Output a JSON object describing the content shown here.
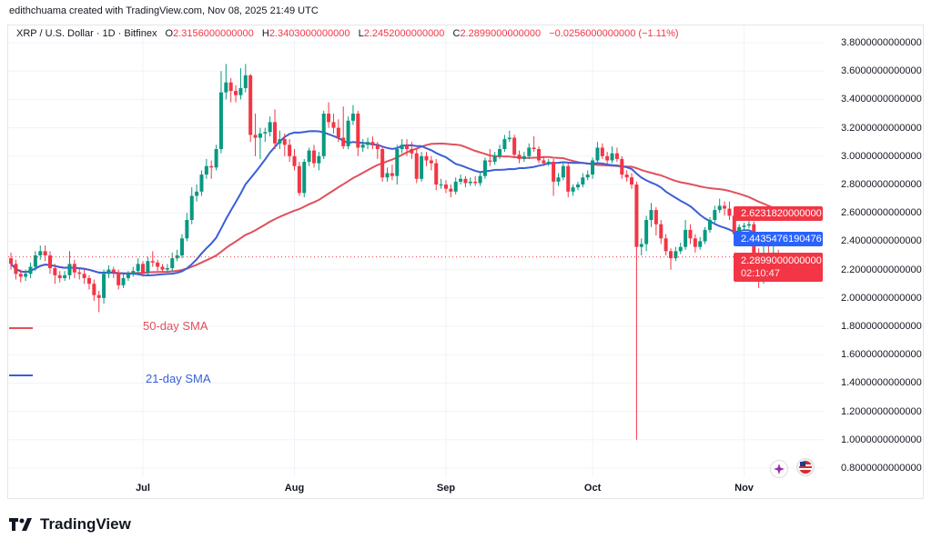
{
  "credit": "edithchuama created with TradingView.com, Nov 08, 2025 21:49 UTC",
  "symbol_line": {
    "symbol": "XRP / U.S. Dollar · 1D · Bitfinex",
    "o_label": "O",
    "o": "2.3156000000000",
    "h_label": "H",
    "h": "2.3403000000000",
    "l_label": "L",
    "l": "2.2452000000000",
    "c_label": "C",
    "c": "2.2899000000000",
    "change": "−0.0256000000000 (−1.11%)"
  },
  "legend": {
    "sma50": "50-day SMA",
    "sma21": "21-day SMA"
  },
  "price_labels": {
    "sma50_value": "2.6231820000000",
    "sma21_value": "2.4435476190476",
    "last_price": "2.2899000000000",
    "countdown": "02:10:47"
  },
  "colors": {
    "up": "#089981",
    "down": "#f23645",
    "sma50": "#e0505c",
    "sma21": "#3a5fd6",
    "blue_label": "#2962ff",
    "red_label": "#f23645"
  },
  "brand": "TradingView",
  "chart_data": {
    "type": "candlestick",
    "title": "XRP / U.S. Dollar · 1D · Bitfinex",
    "ylim": [
      0.7,
      3.9
    ],
    "y_ticks": [
      "3.8000000000000",
      "3.6000000000000",
      "3.4000000000000",
      "3.2000000000000",
      "3.0000000000000",
      "2.8000000000000",
      "2.6000000000000",
      "2.4000000000000",
      "2.2000000000000",
      "2.0000000000000",
      "1.8000000000000",
      "1.6000000000000",
      "1.4000000000000",
      "1.2000000000000",
      "1.0000000000000",
      "0.8000000000000"
    ],
    "x_ticks": [
      {
        "label": "Jul",
        "date": "2025-07-01"
      },
      {
        "label": "Aug",
        "date": "2025-08-01"
      },
      {
        "label": "Sep",
        "date": "2025-09-01"
      },
      {
        "label": "Oct",
        "date": "2025-10-01"
      },
      {
        "label": "Nov",
        "date": "2025-11-01"
      }
    ],
    "grid": true,
    "indicators": [
      {
        "name": "50-day SMA",
        "period": 50
      },
      {
        "name": "21-day SMA",
        "period": 21
      }
    ],
    "candles_fields": [
      "date",
      "open",
      "high",
      "low",
      "close"
    ],
    "candles": [
      [
        "2025-06-04",
        2.28,
        2.32,
        2.2,
        2.24
      ],
      [
        "2025-06-05",
        2.24,
        2.27,
        2.13,
        2.17
      ],
      [
        "2025-06-06",
        2.17,
        2.2,
        2.11,
        2.15
      ],
      [
        "2025-06-07",
        2.15,
        2.2,
        2.12,
        2.17
      ],
      [
        "2025-06-08",
        2.17,
        2.25,
        2.14,
        2.22
      ],
      [
        "2025-06-09",
        2.22,
        2.33,
        2.19,
        2.3
      ],
      [
        "2025-06-10",
        2.3,
        2.37,
        2.27,
        2.33
      ],
      [
        "2025-06-11",
        2.33,
        2.37,
        2.26,
        2.3
      ],
      [
        "2025-06-12",
        2.3,
        2.33,
        2.17,
        2.21
      ],
      [
        "2025-06-13",
        2.21,
        2.24,
        2.1,
        2.16
      ],
      [
        "2025-06-14",
        2.16,
        2.19,
        2.11,
        2.14
      ],
      [
        "2025-06-15",
        2.14,
        2.19,
        2.12,
        2.16
      ],
      [
        "2025-06-16",
        2.16,
        2.33,
        2.13,
        2.24
      ],
      [
        "2025-06-17",
        2.24,
        2.27,
        2.14,
        2.18
      ],
      [
        "2025-06-18",
        2.18,
        2.21,
        2.13,
        2.17
      ],
      [
        "2025-06-19",
        2.17,
        2.2,
        2.1,
        2.14
      ],
      [
        "2025-06-20",
        2.14,
        2.16,
        2.06,
        2.1
      ],
      [
        "2025-06-21",
        2.1,
        2.13,
        1.98,
        2.02
      ],
      [
        "2025-06-22",
        2.02,
        2.05,
        1.9,
        2.0
      ],
      [
        "2025-06-23",
        2.0,
        2.2,
        1.96,
        2.17
      ],
      [
        "2025-06-24",
        2.17,
        2.23,
        2.14,
        2.2
      ],
      [
        "2025-06-25",
        2.2,
        2.22,
        2.14,
        2.18
      ],
      [
        "2025-06-26",
        2.18,
        2.2,
        2.06,
        2.09
      ],
      [
        "2025-06-27",
        2.09,
        2.17,
        2.07,
        2.14
      ],
      [
        "2025-06-28",
        2.14,
        2.19,
        2.12,
        2.17
      ],
      [
        "2025-06-29",
        2.17,
        2.22,
        2.15,
        2.19
      ],
      [
        "2025-06-30",
        2.19,
        2.28,
        2.17,
        2.24
      ],
      [
        "2025-07-01",
        2.24,
        2.26,
        2.15,
        2.18
      ],
      [
        "2025-07-02",
        2.18,
        2.29,
        2.16,
        2.26
      ],
      [
        "2025-07-03",
        2.26,
        2.33,
        2.22,
        2.25
      ],
      [
        "2025-07-04",
        2.25,
        2.27,
        2.19,
        2.22
      ],
      [
        "2025-07-05",
        2.22,
        2.24,
        2.18,
        2.2
      ],
      [
        "2025-07-06",
        2.2,
        2.24,
        2.18,
        2.21
      ],
      [
        "2025-07-07",
        2.21,
        2.32,
        2.19,
        2.28
      ],
      [
        "2025-07-08",
        2.28,
        2.34,
        2.26,
        2.3
      ],
      [
        "2025-07-09",
        2.3,
        2.45,
        2.28,
        2.42
      ],
      [
        "2025-07-10",
        2.42,
        2.6,
        2.4,
        2.55
      ],
      [
        "2025-07-11",
        2.55,
        2.78,
        2.52,
        2.72
      ],
      [
        "2025-07-12",
        2.72,
        2.8,
        2.68,
        2.75
      ],
      [
        "2025-07-13",
        2.75,
        2.9,
        2.72,
        2.87
      ],
      [
        "2025-07-14",
        2.87,
        2.98,
        2.84,
        2.93
      ],
      [
        "2025-07-15",
        2.93,
        2.97,
        2.84,
        2.92
      ],
      [
        "2025-07-16",
        2.92,
        3.08,
        2.9,
        3.05
      ],
      [
        "2025-07-17",
        3.05,
        3.6,
        3.02,
        3.45
      ],
      [
        "2025-07-18",
        3.45,
        3.65,
        3.4,
        3.52
      ],
      [
        "2025-07-19",
        3.52,
        3.55,
        3.38,
        3.46
      ],
      [
        "2025-07-20",
        3.46,
        3.5,
        3.38,
        3.43
      ],
      [
        "2025-07-21",
        3.43,
        3.62,
        3.4,
        3.48
      ],
      [
        "2025-07-22",
        3.48,
        3.65,
        3.45,
        3.57
      ],
      [
        "2025-07-23",
        3.57,
        3.58,
        3.1,
        3.15
      ],
      [
        "2025-07-24",
        3.15,
        3.3,
        3.0,
        3.13
      ],
      [
        "2025-07-25",
        3.13,
        3.2,
        2.98,
        3.16
      ],
      [
        "2025-07-26",
        3.16,
        3.2,
        3.1,
        3.17
      ],
      [
        "2025-07-27",
        3.17,
        3.28,
        3.14,
        3.24
      ],
      [
        "2025-07-28",
        3.24,
        3.33,
        3.05,
        3.09
      ],
      [
        "2025-07-29",
        3.09,
        3.18,
        3.05,
        3.12
      ],
      [
        "2025-07-30",
        3.12,
        3.16,
        3.0,
        3.08
      ],
      [
        "2025-07-31",
        3.08,
        3.12,
        2.96,
        3.0
      ],
      [
        "2025-08-01",
        3.0,
        3.05,
        2.9,
        2.93
      ],
      [
        "2025-08-02",
        2.93,
        2.96,
        2.72,
        2.74
      ],
      [
        "2025-08-03",
        2.74,
        2.98,
        2.71,
        2.96
      ],
      [
        "2025-08-04",
        2.96,
        3.06,
        2.93,
        3.04
      ],
      [
        "2025-08-05",
        3.04,
        3.08,
        2.92,
        2.95
      ],
      [
        "2025-08-06",
        2.95,
        3.03,
        2.9,
        3.0
      ],
      [
        "2025-08-07",
        3.0,
        3.32,
        2.98,
        3.3
      ],
      [
        "2025-08-08",
        3.3,
        3.38,
        3.2,
        3.24
      ],
      [
        "2025-08-09",
        3.24,
        3.3,
        3.16,
        3.2
      ],
      [
        "2025-08-10",
        3.2,
        3.26,
        3.1,
        3.13
      ],
      [
        "2025-08-11",
        3.13,
        3.35,
        3.05,
        3.07
      ],
      [
        "2025-08-12",
        3.07,
        3.28,
        3.05,
        3.25
      ],
      [
        "2025-08-13",
        3.25,
        3.36,
        3.22,
        3.3
      ],
      [
        "2025-08-14",
        3.3,
        3.32,
        3.0,
        3.06
      ],
      [
        "2025-08-15",
        3.06,
        3.12,
        3.03,
        3.08
      ],
      [
        "2025-08-16",
        3.08,
        3.13,
        3.05,
        3.1
      ],
      [
        "2025-08-17",
        3.1,
        3.14,
        3.05,
        3.08
      ],
      [
        "2025-08-18",
        3.08,
        3.1,
        2.98,
        3.05
      ],
      [
        "2025-08-19",
        3.05,
        3.07,
        2.82,
        2.85
      ],
      [
        "2025-08-20",
        2.85,
        2.92,
        2.82,
        2.88
      ],
      [
        "2025-08-21",
        2.88,
        2.94,
        2.83,
        2.86
      ],
      [
        "2025-08-22",
        2.86,
        3.08,
        2.8,
        3.05
      ],
      [
        "2025-08-23",
        3.05,
        3.12,
        3.02,
        3.08
      ],
      [
        "2025-08-24",
        3.08,
        3.12,
        3.0,
        3.05
      ],
      [
        "2025-08-25",
        3.05,
        3.1,
        2.98,
        3.02
      ],
      [
        "2025-08-26",
        3.02,
        3.05,
        2.81,
        2.84
      ],
      [
        "2025-08-27",
        2.84,
        3.03,
        2.82,
        3.0
      ],
      [
        "2025-08-28",
        3.0,
        3.03,
        2.93,
        2.97
      ],
      [
        "2025-08-29",
        2.97,
        3.0,
        2.9,
        2.95
      ],
      [
        "2025-08-30",
        2.95,
        2.98,
        2.76,
        2.8
      ],
      [
        "2025-08-31",
        2.8,
        2.84,
        2.77,
        2.8
      ],
      [
        "2025-09-01",
        2.8,
        2.83,
        2.74,
        2.77
      ],
      [
        "2025-09-02",
        2.77,
        2.8,
        2.71,
        2.75
      ],
      [
        "2025-09-03",
        2.75,
        2.85,
        2.73,
        2.82
      ],
      [
        "2025-09-04",
        2.82,
        2.87,
        2.8,
        2.84
      ],
      [
        "2025-09-05",
        2.84,
        2.86,
        2.78,
        2.81
      ],
      [
        "2025-09-06",
        2.81,
        2.85,
        2.79,
        2.82
      ],
      [
        "2025-09-07",
        2.82,
        2.86,
        2.79,
        2.81
      ],
      [
        "2025-09-08",
        2.81,
        2.89,
        2.79,
        2.86
      ],
      [
        "2025-09-09",
        2.86,
        2.99,
        2.84,
        2.97
      ],
      [
        "2025-09-10",
        2.97,
        3.05,
        2.93,
        2.96
      ],
      [
        "2025-09-11",
        2.96,
        3.03,
        2.94,
        3.0
      ],
      [
        "2025-09-12",
        3.0,
        3.08,
        2.98,
        3.05
      ],
      [
        "2025-09-13",
        3.05,
        3.15,
        3.03,
        3.12
      ],
      [
        "2025-09-14",
        3.12,
        3.18,
        3.1,
        3.13
      ],
      [
        "2025-09-15",
        3.13,
        3.15,
        2.99,
        3.01
      ],
      [
        "2025-09-16",
        3.01,
        3.04,
        2.95,
        2.98
      ],
      [
        "2025-09-17",
        2.98,
        3.03,
        2.96,
        3.0
      ],
      [
        "2025-09-18",
        3.0,
        3.09,
        2.98,
        3.06
      ],
      [
        "2025-09-19",
        3.06,
        3.14,
        3.03,
        3.05
      ],
      [
        "2025-09-20",
        3.05,
        3.07,
        2.95,
        2.97
      ],
      [
        "2025-09-21",
        2.97,
        3.0,
        2.93,
        2.95
      ],
      [
        "2025-09-22",
        2.95,
        2.98,
        2.93,
        2.96
      ],
      [
        "2025-09-23",
        2.96,
        2.98,
        2.72,
        2.82
      ],
      [
        "2025-09-24",
        2.82,
        2.88,
        2.79,
        2.85
      ],
      [
        "2025-09-25",
        2.85,
        2.96,
        2.83,
        2.93
      ],
      [
        "2025-09-26",
        2.93,
        2.95,
        2.71,
        2.75
      ],
      [
        "2025-09-27",
        2.75,
        2.8,
        2.72,
        2.78
      ],
      [
        "2025-09-28",
        2.78,
        2.82,
        2.76,
        2.8
      ],
      [
        "2025-09-29",
        2.8,
        2.88,
        2.78,
        2.85
      ],
      [
        "2025-09-30",
        2.85,
        2.9,
        2.83,
        2.87
      ],
      [
        "2025-10-01",
        2.87,
        2.99,
        2.84,
        2.97
      ],
      [
        "2025-10-02",
        2.97,
        3.1,
        2.95,
        3.06
      ],
      [
        "2025-10-03",
        3.06,
        3.09,
        2.98,
        3.0
      ],
      [
        "2025-10-04",
        3.0,
        3.03,
        2.94,
        2.97
      ],
      [
        "2025-10-05",
        2.97,
        3.07,
        2.95,
        3.02
      ],
      [
        "2025-10-06",
        3.02,
        3.06,
        2.96,
        2.98
      ],
      [
        "2025-10-07",
        2.98,
        3.0,
        2.84,
        2.87
      ],
      [
        "2025-10-08",
        2.87,
        2.9,
        2.82,
        2.85
      ],
      [
        "2025-10-09",
        2.85,
        2.88,
        2.77,
        2.8
      ],
      [
        "2025-10-10",
        2.8,
        2.82,
        1.0,
        2.36
      ],
      [
        "2025-10-11",
        2.36,
        2.42,
        2.3,
        2.38
      ],
      [
        "2025-10-12",
        2.38,
        2.58,
        2.33,
        2.55
      ],
      [
        "2025-10-13",
        2.55,
        2.67,
        2.5,
        2.62
      ],
      [
        "2025-10-14",
        2.62,
        2.64,
        2.44,
        2.52
      ],
      [
        "2025-10-15",
        2.52,
        2.55,
        2.38,
        2.42
      ],
      [
        "2025-10-16",
        2.42,
        2.45,
        2.3,
        2.33
      ],
      [
        "2025-10-17",
        2.33,
        2.35,
        2.2,
        2.28
      ],
      [
        "2025-10-18",
        2.28,
        2.36,
        2.26,
        2.33
      ],
      [
        "2025-10-19",
        2.33,
        2.39,
        2.31,
        2.36
      ],
      [
        "2025-10-20",
        2.36,
        2.55,
        2.34,
        2.48
      ],
      [
        "2025-10-21",
        2.48,
        2.52,
        2.38,
        2.42
      ],
      [
        "2025-10-22",
        2.42,
        2.45,
        2.32,
        2.36
      ],
      [
        "2025-10-23",
        2.36,
        2.43,
        2.34,
        2.4
      ],
      [
        "2025-10-24",
        2.4,
        2.5,
        2.38,
        2.48
      ],
      [
        "2025-10-25",
        2.48,
        2.57,
        2.46,
        2.55
      ],
      [
        "2025-10-26",
        2.55,
        2.65,
        2.53,
        2.62
      ],
      [
        "2025-10-27",
        2.62,
        2.7,
        2.6,
        2.65
      ],
      [
        "2025-10-28",
        2.65,
        2.68,
        2.58,
        2.63
      ],
      [
        "2025-10-29",
        2.63,
        2.68,
        2.55,
        2.58
      ],
      [
        "2025-10-30",
        2.58,
        2.61,
        2.4,
        2.45
      ],
      [
        "2025-10-31",
        2.45,
        2.52,
        2.43,
        2.5
      ],
      [
        "2025-11-01",
        2.5,
        2.53,
        2.48,
        2.51
      ],
      [
        "2025-11-02",
        2.51,
        2.56,
        2.49,
        2.52
      ],
      [
        "2025-11-03",
        2.52,
        2.54,
        2.22,
        2.31
      ],
      [
        "2025-11-04",
        2.31,
        2.35,
        2.07,
        2.2
      ],
      [
        "2025-11-05",
        2.2,
        2.38,
        2.1,
        2.31
      ],
      [
        "2025-11-06",
        2.31,
        2.39,
        2.18,
        2.22
      ],
      [
        "2025-11-07",
        2.22,
        2.37,
        2.13,
        2.32
      ],
      [
        "2025-11-08",
        2.3156,
        2.3403,
        2.2452,
        2.2899
      ]
    ]
  }
}
